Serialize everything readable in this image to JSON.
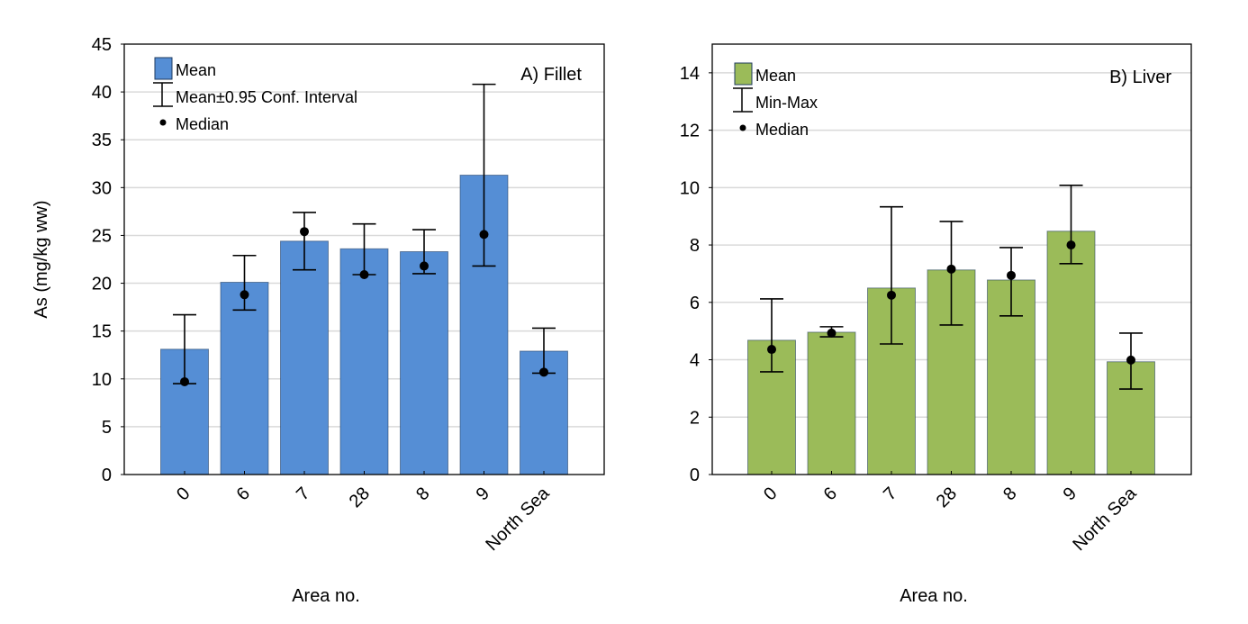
{
  "chart_data": [
    {
      "type": "bar",
      "panel_label": "A) Fillet",
      "ylabel": "As (mg/kg ww)",
      "xlabel": "Area no.",
      "ylim": [
        0,
        45
      ],
      "yticks": [
        0,
        5,
        10,
        15,
        20,
        25,
        30,
        35,
        40,
        45
      ],
      "grid": true,
      "bar_color": "#558ED5",
      "legend_position": "top-left",
      "legend": [
        {
          "type": "bar",
          "label": "Mean"
        },
        {
          "type": "errorbar",
          "label": "Mean±0.95 Conf. Interval"
        },
        {
          "type": "dot",
          "label": "Median"
        }
      ],
      "categories": [
        "0",
        "6",
        "7",
        "28",
        "8",
        "9",
        "North Sea"
      ],
      "series": [
        {
          "name": "Mean",
          "values": [
            13.1,
            20.1,
            24.4,
            23.6,
            23.3,
            31.3,
            12.9
          ]
        },
        {
          "name": "CI lower",
          "values": [
            9.5,
            17.2,
            21.4,
            20.9,
            21.0,
            21.8,
            10.6
          ]
        },
        {
          "name": "CI upper",
          "values": [
            16.7,
            22.9,
            27.4,
            26.2,
            25.6,
            40.8,
            15.3
          ]
        },
        {
          "name": "Median",
          "values": [
            9.7,
            18.8,
            25.4,
            20.9,
            21.8,
            25.1,
            10.7
          ]
        }
      ]
    },
    {
      "type": "bar",
      "panel_label": "B) Liver",
      "ylabel": "",
      "xlabel": "Area no.",
      "ylim": [
        0,
        15
      ],
      "yticks": [
        0,
        2,
        4,
        6,
        8,
        10,
        12,
        14
      ],
      "grid": true,
      "bar_color": "#9BBB59",
      "legend_position": "top-left",
      "legend": [
        {
          "type": "bar",
          "label": "Mean"
        },
        {
          "type": "errorbar",
          "label": "Min-Max"
        },
        {
          "type": "dot",
          "label": "Median"
        }
      ],
      "categories": [
        "0",
        "6",
        "7",
        "28",
        "8",
        "9",
        "North Sea"
      ],
      "series": [
        {
          "name": "Mean",
          "values": [
            4.68,
            4.96,
            6.5,
            7.13,
            6.78,
            8.48,
            3.93
          ]
        },
        {
          "name": "Min",
          "values": [
            3.58,
            4.8,
            4.55,
            5.21,
            5.53,
            7.35,
            2.98
          ]
        },
        {
          "name": "Max",
          "values": [
            6.12,
            5.15,
            9.33,
            8.82,
            7.91,
            10.08,
            4.93
          ]
        },
        {
          "name": "Median",
          "values": [
            4.36,
            4.93,
            6.25,
            7.16,
            6.94,
            8.0,
            3.99
          ]
        }
      ]
    }
  ]
}
